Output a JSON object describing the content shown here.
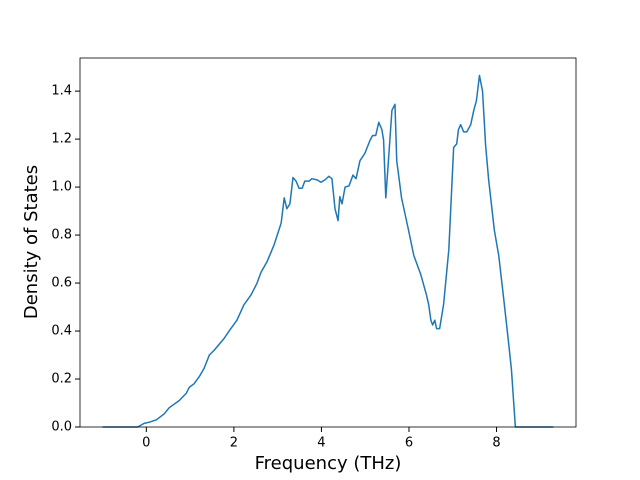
{
  "chart_data": {
    "type": "line",
    "xlabel": "Frequency (THz)",
    "ylabel": "Density of States",
    "xlim": [
      -1.515,
      9.815
    ],
    "ylim": [
      0,
      1.538
    ],
    "xticks": [
      0,
      2,
      4,
      6,
      8
    ],
    "yticks": [
      {
        "value": 0,
        "label": "0.0"
      },
      {
        "value": 0.2,
        "label": "0.2"
      },
      {
        "value": 0.4,
        "label": "0.4"
      },
      {
        "value": 0.6,
        "label": "0.6"
      },
      {
        "value": 0.8,
        "label": "0.8"
      },
      {
        "value": 1.0,
        "label": "1.0"
      },
      {
        "value": 1.2,
        "label": "1.2"
      },
      {
        "value": 1.4,
        "label": "1.4"
      }
    ],
    "grid": false,
    "x": [
      -1.0,
      -0.2,
      -0.05,
      0.07,
      0.23,
      0.41,
      0.52,
      0.75,
      0.91,
      0.98,
      1.09,
      1.21,
      1.32,
      1.44,
      1.55,
      1.78,
      1.89,
      2.07,
      2.23,
      2.39,
      2.53,
      2.62,
      2.76,
      2.92,
      3.08,
      3.15,
      3.21,
      3.28,
      3.35,
      3.42,
      3.49,
      3.56,
      3.62,
      3.72,
      3.78,
      3.9,
      3.99,
      4.08,
      4.17,
      4.24,
      4.31,
      4.38,
      4.42,
      4.47,
      4.54,
      4.63,
      4.72,
      4.79,
      4.88,
      4.99,
      5.11,
      5.17,
      5.24,
      5.31,
      5.38,
      5.42,
      5.47,
      5.54,
      5.61,
      5.68,
      5.72,
      5.83,
      5.99,
      6.11,
      6.27,
      6.4,
      6.45,
      6.5,
      6.54,
      6.59,
      6.63,
      6.7,
      6.79,
      6.91,
      7.02,
      7.09,
      7.13,
      7.18,
      7.25,
      7.32,
      7.41,
      7.48,
      7.54,
      7.61,
      7.68,
      7.75,
      7.82,
      7.95,
      8.05,
      8.16,
      8.27,
      8.34,
      8.43,
      9.3
    ],
    "series": [
      {
        "color": "#1f77b4",
        "values": [
          0,
          0,
          0.015,
          0.02,
          0.03,
          0.055,
          0.08,
          0.11,
          0.14,
          0.165,
          0.18,
          0.21,
          0.245,
          0.3,
          0.32,
          0.37,
          0.4,
          0.445,
          0.51,
          0.55,
          0.6,
          0.645,
          0.69,
          0.76,
          0.85,
          0.955,
          0.91,
          0.93,
          1.04,
          1.025,
          0.995,
          0.995,
          1.025,
          1.025,
          1.035,
          1.03,
          1.02,
          1.03,
          1.045,
          1.035,
          0.91,
          0.86,
          0.96,
          0.93,
          1.0,
          1.005,
          1.05,
          1.035,
          1.11,
          1.14,
          1.195,
          1.215,
          1.215,
          1.27,
          1.24,
          1.195,
          0.955,
          1.135,
          1.32,
          1.345,
          1.11,
          0.955,
          0.82,
          0.715,
          0.635,
          0.55,
          0.51,
          0.445,
          0.425,
          0.445,
          0.41,
          0.41,
          0.51,
          0.74,
          1.165,
          1.18,
          1.24,
          1.26,
          1.23,
          1.23,
          1.26,
          1.32,
          1.36,
          1.465,
          1.4,
          1.175,
          1.03,
          0.82,
          0.715,
          0.54,
          0.36,
          0.24,
          0,
          0
        ]
      }
    ]
  }
}
